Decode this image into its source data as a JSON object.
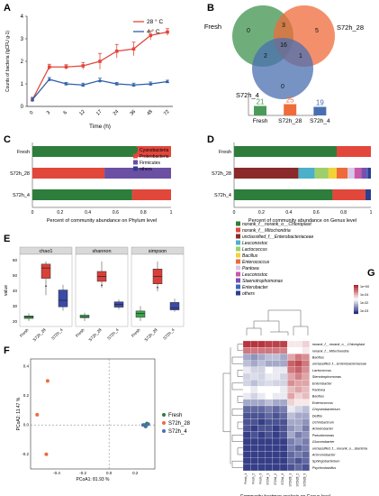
{
  "panels": {
    "A": "A",
    "B": "B",
    "C": "C",
    "D": "D",
    "E": "E",
    "F": "F",
    "G": "G"
  },
  "colors": {
    "red": "#e2473c",
    "blue": "#2f5fa8",
    "green": "#2e7d3c",
    "purple": "#6a4fa3",
    "orange": "#ef6a3a",
    "venn_green": "#4b9a5a",
    "venn_orange": "#ef6b3a",
    "venn_blue": "#4a6fb0"
  },
  "chart_data": [
    {
      "id": "A",
      "type": "line",
      "xlabel": "Time (h)",
      "ylabel": "Counts of bacteria (lgCFU g-1)",
      "x": [
        "0",
        "3",
        "6",
        "12",
        "17",
        "24",
        "36",
        "48",
        "72"
      ],
      "ylim": [
        0,
        4
      ],
      "yticks": [
        "0",
        "1",
        "2",
        "3",
        "4"
      ],
      "series": [
        {
          "name": "28 ° C",
          "color": "#e2473c",
          "values": [
            0.3,
            1.75,
            1.75,
            1.8,
            2.0,
            2.45,
            2.55,
            3.15,
            3.3
          ],
          "err": [
            0.1,
            0.12,
            0.1,
            0.15,
            0.35,
            0.3,
            0.3,
            0.2,
            0.15
          ]
        },
        {
          "name": "4 ° C",
          "color": "#2f5fa8",
          "values": [
            0.3,
            1.2,
            1.0,
            0.95,
            1.15,
            1.0,
            0.95,
            1.0,
            1.1
          ],
          "err": [
            0.1,
            0.08,
            0.06,
            0.08,
            0.1,
            0.06,
            0.08,
            0.08,
            0.06
          ]
        }
      ]
    },
    {
      "id": "B",
      "type": "venn",
      "sets": [
        "Fresh",
        "S72h_28",
        "S72h_4"
      ],
      "regions": {
        "fresh_only": "0",
        "s28_only": "5",
        "s4_only": "0",
        "fresh_s28": "3",
        "fresh_s4": "2",
        "s28_s4": "1",
        "all": "16"
      },
      "bars": {
        "categories": [
          "Fresh",
          "S72h_28",
          "S72h_4"
        ],
        "values": [
          21,
          25,
          19
        ],
        "colors": [
          "#4b9a5a",
          "#ef6b3a",
          "#4a6fb0"
        ]
      }
    },
    {
      "id": "C",
      "type": "bar",
      "xlabel": "Percent of community abundance on Phylum level",
      "xticks": [
        "0",
        "0.2",
        "0.4",
        "0.6",
        "0.8",
        "1"
      ],
      "categories": [
        "Fresh",
        "S72h_28",
        "S72h_4"
      ],
      "legend": [
        "Cyanobacteria",
        "Proteobacteria",
        "Firmicutes",
        "others"
      ],
      "legend_colors": [
        "#2e7d3c",
        "#e2473c",
        "#6a4fa3",
        "#2f3e8f"
      ],
      "series": [
        {
          "name": "Cyanobacteria",
          "values": [
            0.75,
            0.0,
            0.72
          ]
        },
        {
          "name": "Proteobacteria",
          "values": [
            0.25,
            0.52,
            0.28
          ]
        },
        {
          "name": "Firmicutes",
          "values": [
            0.0,
            0.48,
            0.0
          ]
        },
        {
          "name": "others",
          "values": [
            0.0,
            0.0,
            0.0
          ]
        }
      ]
    },
    {
      "id": "D",
      "type": "bar",
      "xlabel": "Percent of community abundance on Genus level",
      "xticks": [
        "0",
        "0.2",
        "0.4",
        "0.6",
        "0.8",
        "1"
      ],
      "categories": [
        "Fresh",
        "S72h_28",
        "S72h_4"
      ],
      "legend": [
        "norank_f__norank_o__Chloroplast",
        "norank_f__Mitochondria",
        "unclassified_f__Enterobacteriaceae",
        "Leuconostoc",
        "Lactococcus",
        "Bacillus",
        "Enterococcus",
        "Pantoea",
        "Leuconostoc",
        "Staenotrophomonas",
        "Enterobacter",
        "others"
      ],
      "legend_colors": [
        "#2e7d3c",
        "#e2473c",
        "#8a2a2a",
        "#4bb0c8",
        "#9fcf6a",
        "#f2d23a",
        "#ef6a3a",
        "#d8c8e8",
        "#c85aa8",
        "#7a4fb0",
        "#3a6ab8",
        "#2f3e8f"
      ],
      "segments": [
        [
          0.75,
          0.25,
          0,
          0,
          0,
          0,
          0,
          0,
          0,
          0,
          0,
          0
        ],
        [
          0,
          0,
          0.47,
          0.12,
          0.1,
          0.06,
          0.08,
          0.05,
          0.05,
          0.04,
          0.01,
          0.02
        ],
        [
          0.72,
          0.24,
          0,
          0,
          0,
          0,
          0,
          0,
          0,
          0,
          0,
          0.04
        ]
      ]
    },
    {
      "id": "E",
      "type": "box",
      "ylabel": "value",
      "panels": [
        {
          "title": "chao1",
          "categories": [
            "Fresh",
            "S72h_28",
            "S72h_4"
          ],
          "boxes": [
            [
              16,
              18,
              19,
              20,
              22
            ],
            [
              36,
              49,
              57,
              60,
              62
            ],
            [
              24,
              27,
              32,
              40,
              44
            ]
          ],
          "outliers": [
            [],
            [
              43
            ],
            []
          ]
        },
        {
          "title": "shannon",
          "categories": [
            "Fresh",
            "S72h_28",
            "S72h_4"
          ],
          "boxes": [
            [
              0.2,
              0.3,
              0.33,
              0.38,
              0.45
            ],
            [
              1.2,
              1.4,
              1.55,
              1.7,
              2.0
            ],
            [
              0.55,
              0.62,
              0.7,
              0.78,
              0.85
            ]
          ],
          "outliers": [
            [],
            [
              1.28
            ],
            []
          ]
        },
        {
          "title": "simpson",
          "categories": [
            "Fresh",
            "S72h_28",
            "S72h_4"
          ],
          "boxes": [
            [
              0.35,
              0.45,
              0.55,
              0.62,
              0.75
            ],
            [
              1.15,
              1.35,
              1.55,
              1.75,
              1.95
            ],
            [
              0.6,
              0.65,
              0.7,
              0.85,
              0.95
            ]
          ],
          "outliers": [
            [],
            [
              1.25
            ],
            []
          ]
        }
      ],
      "yticks": [
        "20",
        "30",
        "40",
        "50",
        "60"
      ]
    },
    {
      "id": "F",
      "type": "scatter",
      "xlabel": "PCoA1: 81.93 %",
      "ylabel": "PCoA2: 11.47 %",
      "xticks": [
        "-0.4",
        "-0.2",
        "0.0",
        "0.2"
      ],
      "yticks": [
        "-0.2",
        "0.0",
        "0.2",
        "0.4"
      ],
      "series": [
        {
          "name": "Fresh",
          "color": "#2e7d3c",
          "points": [
            [
              0.27,
              0.0
            ],
            [
              0.29,
              0.01
            ],
            [
              0.28,
              -0.01
            ]
          ]
        },
        {
          "name": "S72h_28",
          "color": "#ef6a3a",
          "points": [
            [
              -0.47,
              0.3
            ],
            [
              -0.48,
              -0.2
            ],
            [
              -0.55,
              0.07
            ]
          ]
        },
        {
          "name": "S72h_4",
          "color": "#4a6fb0",
          "points": [
            [
              0.26,
              0.0
            ],
            [
              0.3,
              0.005
            ],
            [
              0.28,
              -0.005
            ]
          ]
        }
      ]
    },
    {
      "id": "G",
      "type": "heatmap",
      "xlabel": "Community heatmap analysis on Genus level",
      "legend_ticks": [
        "1e+00",
        "1e-04",
        "1e-02",
        "1e-03"
      ],
      "rows": [
        "norank_f__norank_o__Chloroplast",
        "norank_f__Mitochondria",
        "Bacillus",
        "unclassified_f__Enterobacteriaceae",
        "Lactococcus",
        "Stenotrophomonas",
        "Enterobacter",
        "Pantoea",
        "Bacillus",
        "Enterococcus",
        "Chryseobacterium",
        "Delftia",
        "Ochrobactrum",
        "Acinetobacter",
        "Pseudomonas",
        "Gluconobacter",
        "unclassified_f__norank_o__Bacteria",
        "Achromobacter",
        "Sphingobacterium",
        "Psychrobacillus"
      ],
      "cols": [
        "Fresh_1",
        "Fresh_2",
        "Fresh_3",
        "S72h4_1",
        "S72h4_2",
        "S72h4_3",
        "S72h28_1",
        "S72h28_2",
        "S72h28_3"
      ],
      "values": [
        [
          0.95,
          0.95,
          0.95,
          0.92,
          0.92,
          0.92,
          0.55,
          0.55,
          0.6
        ],
        [
          0.8,
          0.8,
          0.8,
          0.8,
          0.8,
          0.78,
          0.5,
          0.5,
          0.55
        ],
        [
          0.3,
          0.25,
          0.3,
          0.35,
          0.35,
          0.3,
          0.7,
          0.8,
          0.75
        ],
        [
          0.35,
          0.3,
          0.35,
          0.3,
          0.3,
          0.3,
          0.85,
          0.9,
          0.8
        ],
        [
          0.45,
          0.4,
          0.4,
          0.5,
          0.45,
          0.45,
          0.8,
          0.85,
          0.75
        ],
        [
          0.4,
          0.42,
          0.4,
          0.45,
          0.45,
          0.4,
          0.7,
          0.78,
          0.7
        ],
        [
          0.4,
          0.35,
          0.4,
          0.42,
          0.4,
          0.4,
          0.75,
          0.7,
          0.7
        ],
        [
          0.5,
          0.45,
          0.5,
          0.5,
          0.5,
          0.45,
          0.65,
          0.7,
          0.65
        ],
        [
          0.45,
          0.4,
          0.45,
          0.5,
          0.45,
          0.45,
          0.7,
          0.6,
          0.65
        ],
        [
          0.3,
          0.3,
          0.3,
          0.35,
          0.3,
          0.3,
          0.6,
          0.55,
          0.55
        ],
        [
          0.15,
          0.15,
          0.15,
          0.2,
          0.15,
          0.2,
          0.45,
          0.4,
          0.35
        ],
        [
          0.1,
          0.1,
          0.1,
          0.15,
          0.1,
          0.15,
          0.35,
          0.3,
          0.3
        ],
        [
          0.1,
          0.1,
          0.05,
          0.1,
          0.1,
          0.1,
          0.3,
          0.3,
          0.25
        ],
        [
          0.1,
          0.05,
          0.1,
          0.1,
          0.05,
          0.1,
          0.25,
          0.3,
          0.2
        ],
        [
          0.05,
          0.1,
          0.05,
          0.1,
          0.05,
          0.1,
          0.3,
          0.2,
          0.25
        ],
        [
          0.05,
          0.05,
          0.05,
          0.05,
          0.05,
          0.05,
          0.2,
          0.25,
          0.2
        ],
        [
          0.05,
          0.05,
          0.05,
          0.05,
          0.05,
          0.05,
          0.2,
          0.15,
          0.2
        ],
        [
          0.05,
          0.05,
          0.05,
          0.05,
          0.05,
          0.05,
          0.15,
          0.2,
          0.15
        ],
        [
          0.05,
          0.05,
          0.05,
          0.05,
          0.05,
          0.05,
          0.15,
          0.1,
          0.15
        ],
        [
          0.05,
          0.05,
          0.05,
          0.05,
          0.05,
          0.05,
          0.1,
          0.15,
          0.1
        ]
      ]
    }
  ]
}
